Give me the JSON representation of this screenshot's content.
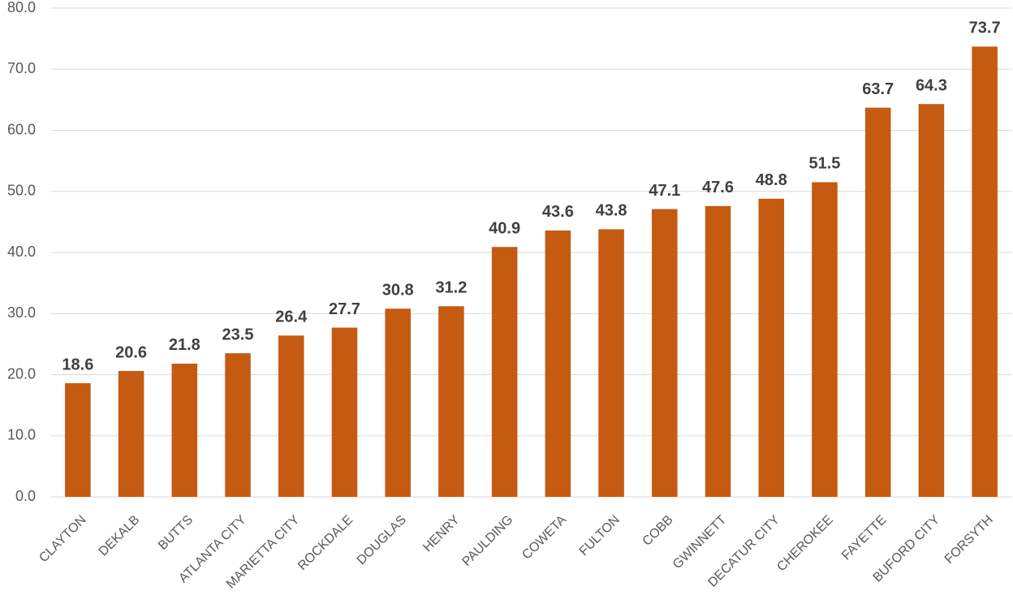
{
  "chart_data": {
    "type": "bar",
    "categories": [
      "CLAYTON",
      "DEKALB",
      "BUTTS",
      "ATLANTA CITY",
      "MARIETTA CITY",
      "ROCKDALE",
      "DOUGLAS",
      "HENRY",
      "PAULDING",
      "COWETA",
      "FULTON",
      "COBB",
      "GWINNETT",
      "DECATUR CITY",
      "CHEROKEE",
      "FAYETTE",
      "BUFORD CITY",
      "FORSYTH"
    ],
    "values": [
      18.6,
      20.6,
      21.8,
      23.5,
      26.4,
      27.7,
      30.8,
      31.2,
      40.9,
      43.6,
      43.8,
      47.1,
      47.6,
      48.8,
      51.5,
      63.7,
      64.3,
      73.7
    ],
    "color": "#c55a11",
    "ylim": [
      0,
      80
    ],
    "yticks": [
      {
        "value": 0,
        "label": "0.0"
      },
      {
        "value": 10,
        "label": "10.0"
      },
      {
        "value": 20,
        "label": "20.0"
      },
      {
        "value": 30,
        "label": "30.0"
      },
      {
        "value": 40,
        "label": "40.0"
      },
      {
        "value": 50,
        "label": "50.0"
      },
      {
        "value": 60,
        "label": "60.0"
      },
      {
        "value": 70,
        "label": "70.0"
      },
      {
        "value": 80,
        "label": "80.0"
      }
    ],
    "grid": true
  }
}
